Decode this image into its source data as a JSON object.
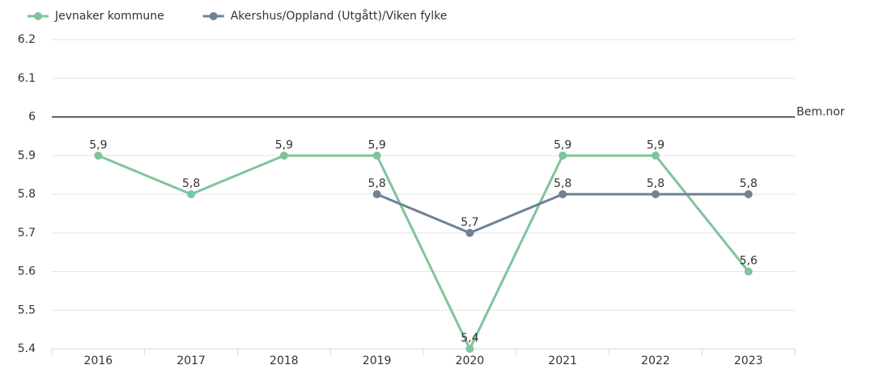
{
  "chart_data": {
    "type": "line",
    "categories": [
      "2016",
      "2017",
      "2018",
      "2019",
      "2020",
      "2021",
      "2022",
      "2023"
    ],
    "series": [
      {
        "name": "Jevnaker kommune",
        "color": "#7fc49b",
        "values": [
          5.9,
          5.8,
          5.9,
          5.9,
          5.4,
          5.9,
          5.9,
          5.6
        ],
        "value_labels": [
          "5,9",
          "5,8",
          "5,9",
          "5,9",
          "5,4",
          "5,9",
          "5,9",
          "5,6"
        ]
      },
      {
        "name": "Akershus/Oppland (Utgått)/Viken fylke",
        "color": "#6e8296",
        "values": [
          null,
          null,
          null,
          5.8,
          5.7,
          5.8,
          5.8,
          5.8
        ],
        "value_labels": [
          null,
          null,
          null,
          "5,8",
          "5,7",
          "5,8",
          "5,8",
          "5,8"
        ]
      }
    ],
    "ylim": [
      5.4,
      6.2
    ],
    "yticks": [
      5.4,
      5.5,
      5.6,
      5.7,
      5.8,
      5.9,
      6,
      6.1,
      6.2
    ],
    "grid": true,
    "reference_line": {
      "value": 6,
      "label": "Bem.nor"
    },
    "legend": "top-left"
  }
}
